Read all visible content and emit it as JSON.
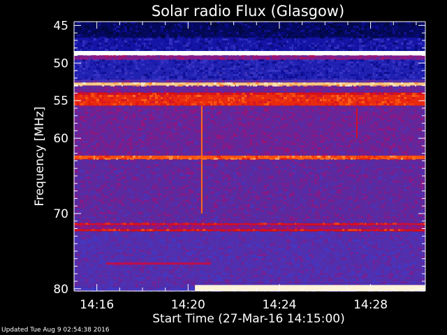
{
  "chart_data": {
    "type": "heatmap",
    "title": "Solar radio Flux (Glasgow)",
    "xlabel": "Start Time (27-Mar-16 14:15:00)",
    "ylabel": "Frequency [MHz]",
    "x_ticks": [
      "14:16",
      "14:20",
      "14:24",
      "14:28"
    ],
    "x_tick_minutes": [
      1,
      5,
      9,
      13
    ],
    "xlim_minutes": [
      0,
      15.4
    ],
    "y_ticks": [
      45,
      50,
      55,
      60,
      70,
      80
    ],
    "ylim": [
      44.5,
      80.3
    ],
    "y_axis_inverted": true,
    "colormap": [
      "#000833",
      "#0a0a9a",
      "#3c3ccf",
      "#5a2aa0",
      "#a0107a",
      "#e01010",
      "#ff6a10",
      "#ffe0a0",
      "#ffffff"
    ],
    "bands": [
      {
        "f_start": 44.5,
        "f_end": 46.6,
        "level": 0.05
      },
      {
        "f_start": 46.6,
        "f_end": 48.4,
        "level": 0.15
      },
      {
        "f_start": 48.4,
        "f_end": 49.0,
        "level": 1.0
      },
      {
        "f_start": 49.0,
        "f_end": 49.6,
        "level": 0.45
      },
      {
        "f_start": 49.6,
        "f_end": 52.2,
        "level": 0.18
      },
      {
        "f_start": 52.2,
        "f_end": 52.6,
        "level": 0.35
      },
      {
        "f_start": 52.6,
        "f_end": 53.0,
        "level": 0.85
      },
      {
        "f_start": 53.0,
        "f_end": 53.9,
        "level": 0.4
      },
      {
        "f_start": 53.9,
        "f_end": 54.2,
        "level": 0.62
      },
      {
        "f_start": 54.2,
        "f_end": 55.7,
        "level": 0.66
      },
      {
        "f_start": 55.7,
        "f_end": 62.3,
        "level": 0.4
      },
      {
        "f_start": 62.3,
        "f_end": 62.8,
        "level": 0.72
      },
      {
        "f_start": 62.8,
        "f_end": 71.3,
        "level": 0.38
      },
      {
        "f_start": 71.3,
        "f_end": 71.6,
        "level": 0.6
      },
      {
        "f_start": 71.6,
        "f_end": 72.1,
        "level": 0.45
      },
      {
        "f_start": 72.1,
        "f_end": 72.4,
        "level": 0.62
      },
      {
        "f_start": 72.4,
        "f_end": 79.8,
        "level": 0.34
      },
      {
        "f_start": 79.8,
        "f_end": 80.3,
        "level": 0.3
      }
    ],
    "events": [
      {
        "type": "vertical_burst",
        "t_minute": 5.6,
        "f_start": 55.7,
        "f_end": 70.0,
        "level": 0.75
      },
      {
        "type": "vertical_burst",
        "t_minute": 12.4,
        "f_start": 56.0,
        "f_end": 60.0,
        "level": 0.6
      },
      {
        "type": "streak",
        "t_start": 1.4,
        "t_end": 6.0,
        "f_start": 76.5,
        "f_end": 76.8,
        "level": 0.55
      },
      {
        "type": "emission",
        "t_start": 5.3,
        "t_end": 15.4,
        "f_start": 79.5,
        "f_end": 80.3,
        "level": 0.95
      }
    ]
  },
  "footer": {
    "updated_text": "Updated Tue Aug  9 02:54:38 2016"
  }
}
